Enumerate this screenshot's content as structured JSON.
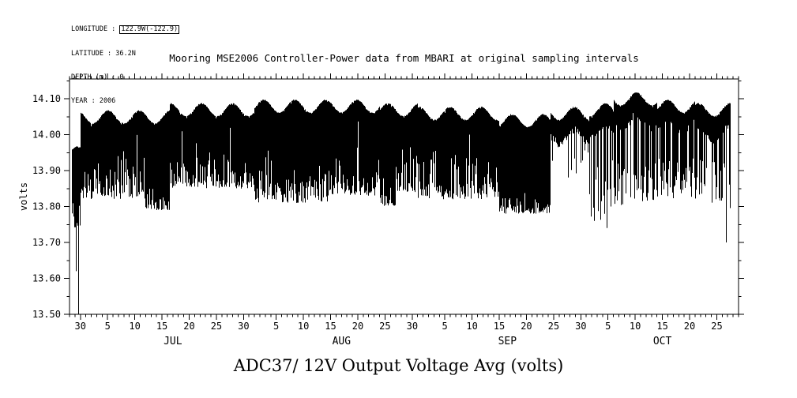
{
  "meta": {
    "longitude_label": "LONGITUDE : ",
    "longitude_value": "122.9W(-122.9)",
    "latitude": "LATITUDE : 36.2N",
    "depth": "DEPTH (m) : 0",
    "year": "YEAR : 2006"
  },
  "colors": {
    "line": "#000000",
    "background": "#ffffff"
  },
  "chart_data": {
    "type": "line",
    "title": "Mooring MSE2006 Controller-Power data from MBARI at original sampling intervals",
    "bottom_title": "ADC37/ 12V Output Voltage Avg (volts)",
    "ylabel": "volts",
    "ylim": [
      13.5,
      14.155
    ],
    "y_ticks": [
      {
        "v": 13.5,
        "label": "13.50"
      },
      {
        "v": 13.6,
        "label": "13.60"
      },
      {
        "v": 13.7,
        "label": "13.70"
      },
      {
        "v": 13.8,
        "label": "13.80"
      },
      {
        "v": 13.9,
        "label": "13.90"
      },
      {
        "v": 14.0,
        "label": "14.00"
      },
      {
        "v": 14.1,
        "label": "14.10"
      }
    ],
    "x_domain_days": [
      0,
      123
    ],
    "x_ticks": [
      {
        "day": 2,
        "label": "30"
      },
      {
        "day": 7,
        "label": "5"
      },
      {
        "day": 12,
        "label": "10"
      },
      {
        "day": 17,
        "label": "15"
      },
      {
        "day": 22,
        "label": "20"
      },
      {
        "day": 27,
        "label": "25"
      },
      {
        "day": 32,
        "label": "30"
      },
      {
        "day": 38,
        "label": "5"
      },
      {
        "day": 43,
        "label": "10"
      },
      {
        "day": 48,
        "label": "15"
      },
      {
        "day": 53,
        "label": "20"
      },
      {
        "day": 58,
        "label": "25"
      },
      {
        "day": 63,
        "label": "30"
      },
      {
        "day": 69,
        "label": "5"
      },
      {
        "day": 74,
        "label": "10"
      },
      {
        "day": 79,
        "label": "15"
      },
      {
        "day": 84,
        "label": "20"
      },
      {
        "day": 89,
        "label": "25"
      },
      {
        "day": 94,
        "label": "30"
      },
      {
        "day": 99,
        "label": "5"
      },
      {
        "day": 104,
        "label": "10"
      },
      {
        "day": 109,
        "label": "15"
      },
      {
        "day": 114,
        "label": "20"
      },
      {
        "day": 119,
        "label": "25"
      }
    ],
    "month_labels": [
      {
        "day": 19,
        "label": "JUL"
      },
      {
        "day": 50,
        "label": "AUG"
      },
      {
        "day": 80.5,
        "label": "SEP"
      },
      {
        "day": 109,
        "label": "OCT"
      }
    ],
    "series": {
      "name": "ADC37 12V output voltage average",
      "units": "volts",
      "description": "Dense voltage time series from late Jun 2006 through late Oct 2006: upper band ~13.98-14.10 V with near-continuous downward excursions to ~13.78-13.98 V; heaviest spike clusters mid-Jul and Sep 15-22; quiet stretch Sep 22-29; isolated deep drops to 13.50 V (Jun 29), 13.74-13.76 V (early Oct) and 13.70 V at the record end (Oct 27).",
      "seed": 20060628,
      "data_range_days": [
        0.5,
        121.5
      ],
      "samples_per_column": 12,
      "segments": [
        [
          0,
          2,
          13.93,
          0.06,
          0.35,
          13.74,
          13.92
        ],
        [
          2,
          14,
          14.03,
          0.05,
          0.3,
          13.82,
          13.97
        ],
        [
          14,
          18.5,
          14.03,
          0.045,
          0.55,
          13.79,
          13.9
        ],
        [
          18.5,
          34,
          14.05,
          0.05,
          0.25,
          13.85,
          13.98
        ],
        [
          34,
          48,
          14.06,
          0.05,
          0.32,
          13.81,
          13.96
        ],
        [
          48,
          57,
          14.06,
          0.05,
          0.28,
          13.83,
          13.97
        ],
        [
          57,
          60,
          14.05,
          0.045,
          0.5,
          13.8,
          13.92
        ],
        [
          60,
          64,
          14.05,
          0.05,
          0.25,
          13.84,
          13.97
        ],
        [
          64,
          79,
          14.04,
          0.05,
          0.3,
          13.82,
          13.96
        ],
        [
          79,
          88.5,
          14.02,
          0.045,
          0.6,
          13.78,
          13.9
        ],
        [
          88.5,
          95.5,
          14.04,
          0.06,
          0.012,
          13.88,
          13.98
        ],
        [
          95.5,
          100,
          14.05,
          0.05,
          0.05,
          13.76,
          13.93
        ],
        [
          100,
          108,
          14.08,
          0.06,
          0.07,
          13.8,
          13.93
        ],
        [
          108,
          115,
          14.06,
          0.05,
          0.1,
          13.82,
          13.95
        ],
        [
          115,
          121.5,
          14.05,
          0.06,
          0.1,
          13.79,
          13.93
        ]
      ],
      "deep_events": [
        [
          1.2,
          13.62
        ],
        [
          1.6,
          13.5
        ],
        [
          96.5,
          13.76
        ],
        [
          98.8,
          13.74
        ],
        [
          120.8,
          13.7
        ]
      ]
    }
  }
}
